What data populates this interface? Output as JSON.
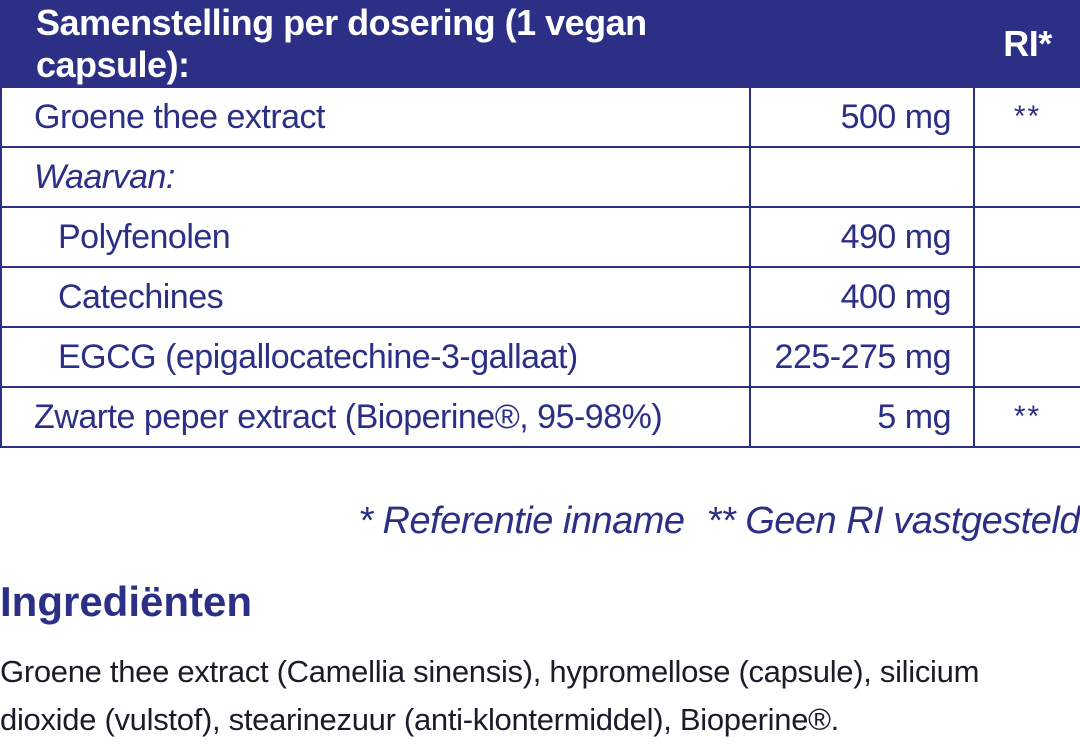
{
  "table": {
    "header": {
      "title": "Samenstelling per dosering (1 vegan capsule):",
      "ri": "RI*"
    },
    "rows": [
      {
        "name": "Groene thee extract",
        "amount": "500 mg",
        "ri": "**"
      },
      {
        "name": "Waarvan:",
        "amount": "",
        "ri": ""
      },
      {
        "name": "Polyfenolen",
        "amount": "490 mg",
        "ri": ""
      },
      {
        "name": "Catechines",
        "amount": "400 mg",
        "ri": ""
      },
      {
        "name": "EGCG (epigallocatechine-3-gallaat)",
        "amount": "225-275 mg",
        "ri": ""
      },
      {
        "name": "Zwarte peper extract (Bioperine®, 95-98%)",
        "amount": "5 mg",
        "ri": "**"
      }
    ]
  },
  "footnotes": {
    "ri": "* Referentie inname",
    "no_ri": "** Geen RI vastgesteld"
  },
  "ingredients": {
    "title": "Ingrediënten",
    "text": "Groene thee extract (Camellia sinensis), hypromellose (capsule), silicium dioxide (vulstof), stearinezuur (anti-klontermiddel), Bioperine®."
  },
  "colors": {
    "primary": "#2b2f86",
    "text": "#1b1b2a",
    "background": "#ffffff"
  }
}
